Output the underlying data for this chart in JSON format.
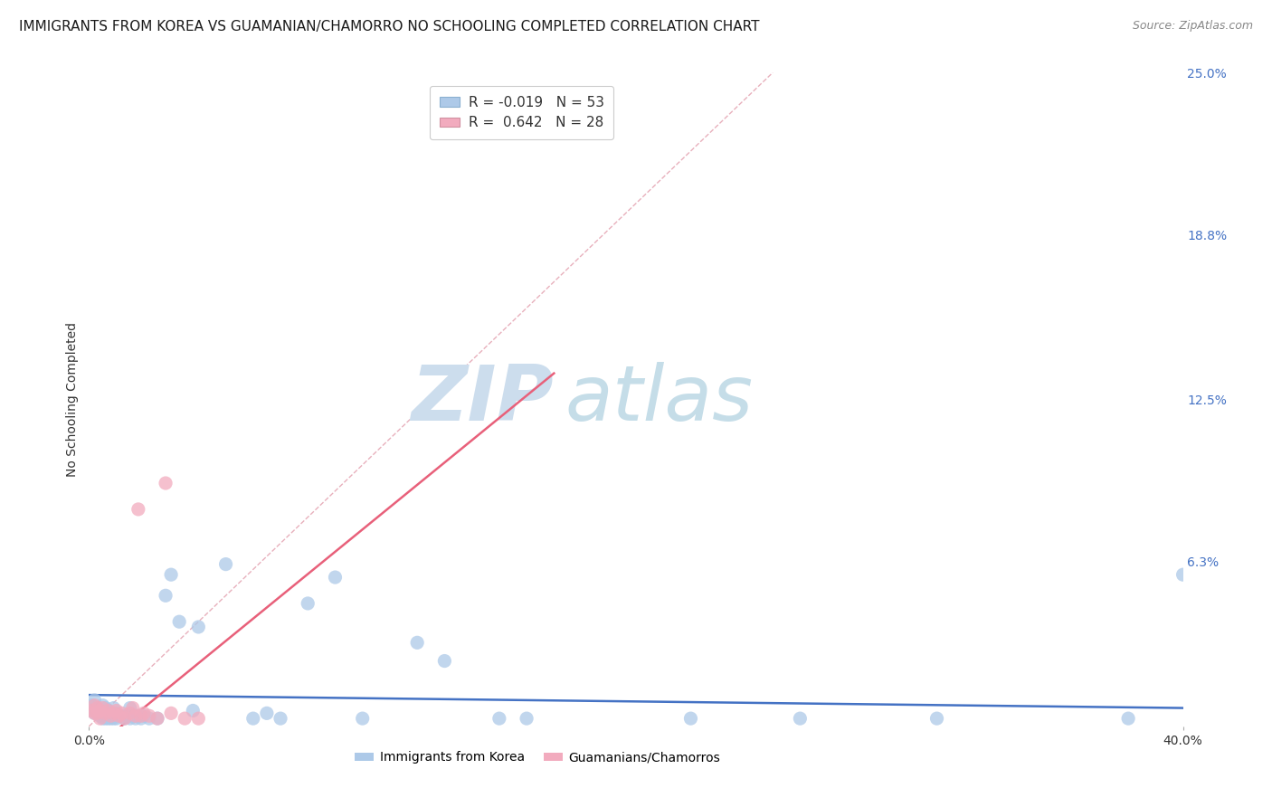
{
  "title": "IMMIGRANTS FROM KOREA VS GUAMANIAN/CHAMORRO NO SCHOOLING COMPLETED CORRELATION CHART",
  "source": "Source: ZipAtlas.com",
  "ylabel": "No Schooling Completed",
  "xlim": [
    0.0,
    0.4
  ],
  "ylim": [
    0.0,
    0.25
  ],
  "xtick_labels": [
    "0.0%",
    "40.0%"
  ],
  "ytick_labels_right": [
    "25.0%",
    "18.8%",
    "12.5%",
    "6.3%"
  ],
  "ytick_values_right": [
    0.25,
    0.188,
    0.125,
    0.063
  ],
  "legend_items": [
    {
      "label_r": "R = -0.019",
      "label_n": "N = 53",
      "color": "#adc9e8"
    },
    {
      "label_r": "R =  0.642",
      "label_n": "N = 28",
      "color": "#f2abbe"
    }
  ],
  "legend_labels_bottom": [
    "Immigrants from Korea",
    "Guamanians/Chamorros"
  ],
  "series_korea": {
    "color": "#adc9e8",
    "x": [
      0.001,
      0.002,
      0.002,
      0.003,
      0.003,
      0.004,
      0.004,
      0.005,
      0.005,
      0.006,
      0.006,
      0.007,
      0.007,
      0.008,
      0.008,
      0.009,
      0.009,
      0.01,
      0.01,
      0.011,
      0.012,
      0.013,
      0.014,
      0.015,
      0.015,
      0.016,
      0.017,
      0.018,
      0.019,
      0.02,
      0.022,
      0.025,
      0.028,
      0.03,
      0.033,
      0.038,
      0.04,
      0.05,
      0.06,
      0.065,
      0.07,
      0.08,
      0.09,
      0.1,
      0.12,
      0.13,
      0.15,
      0.16,
      0.22,
      0.26,
      0.31,
      0.38,
      0.4
    ],
    "y": [
      0.008,
      0.01,
      0.005,
      0.007,
      0.005,
      0.006,
      0.004,
      0.008,
      0.003,
      0.007,
      0.003,
      0.006,
      0.003,
      0.005,
      0.003,
      0.007,
      0.003,
      0.005,
      0.003,
      0.004,
      0.004,
      0.003,
      0.004,
      0.003,
      0.007,
      0.004,
      0.003,
      0.004,
      0.003,
      0.004,
      0.003,
      0.003,
      0.05,
      0.058,
      0.04,
      0.006,
      0.038,
      0.062,
      0.003,
      0.005,
      0.003,
      0.047,
      0.057,
      0.003,
      0.032,
      0.025,
      0.003,
      0.003,
      0.003,
      0.003,
      0.003,
      0.003,
      0.058
    ]
  },
  "series_guam": {
    "color": "#f2abbe",
    "x": [
      0.001,
      0.002,
      0.002,
      0.003,
      0.003,
      0.004,
      0.004,
      0.005,
      0.006,
      0.007,
      0.008,
      0.009,
      0.01,
      0.011,
      0.012,
      0.013,
      0.015,
      0.016,
      0.017,
      0.018,
      0.019,
      0.02,
      0.022,
      0.025,
      0.028,
      0.03,
      0.035,
      0.04
    ],
    "y": [
      0.006,
      0.008,
      0.005,
      0.007,
      0.005,
      0.006,
      0.003,
      0.007,
      0.005,
      0.006,
      0.004,
      0.005,
      0.006,
      0.004,
      0.005,
      0.003,
      0.005,
      0.007,
      0.004,
      0.083,
      0.004,
      0.005,
      0.004,
      0.003,
      0.093,
      0.005,
      0.003,
      0.003
    ]
  },
  "trend_korea": {
    "x": [
      0.0,
      0.4
    ],
    "y": [
      0.012,
      0.007
    ],
    "color": "#4472c4",
    "linewidth": 1.8
  },
  "trend_guam": {
    "x": [
      0.0,
      0.17
    ],
    "y": [
      -0.01,
      0.135
    ],
    "color": "#e8607a",
    "linewidth": 1.8
  },
  "diagonal_line": {
    "x": [
      0.0,
      0.25
    ],
    "y": [
      0.0,
      0.25
    ],
    "color": "#e8b0bc",
    "linestyle": "--",
    "linewidth": 1.0
  },
  "watermark_zip": "ZIP",
  "watermark_atlas": "atlas",
  "watermark_color_zip": "#ccdded",
  "watermark_color_atlas": "#c5dde8",
  "grid_color": "#d8d8d8",
  "background_color": "#ffffff",
  "title_fontsize": 11,
  "axis_label_fontsize": 10,
  "tick_fontsize": 10,
  "source_fontsize": 9,
  "scatter_size": 120
}
